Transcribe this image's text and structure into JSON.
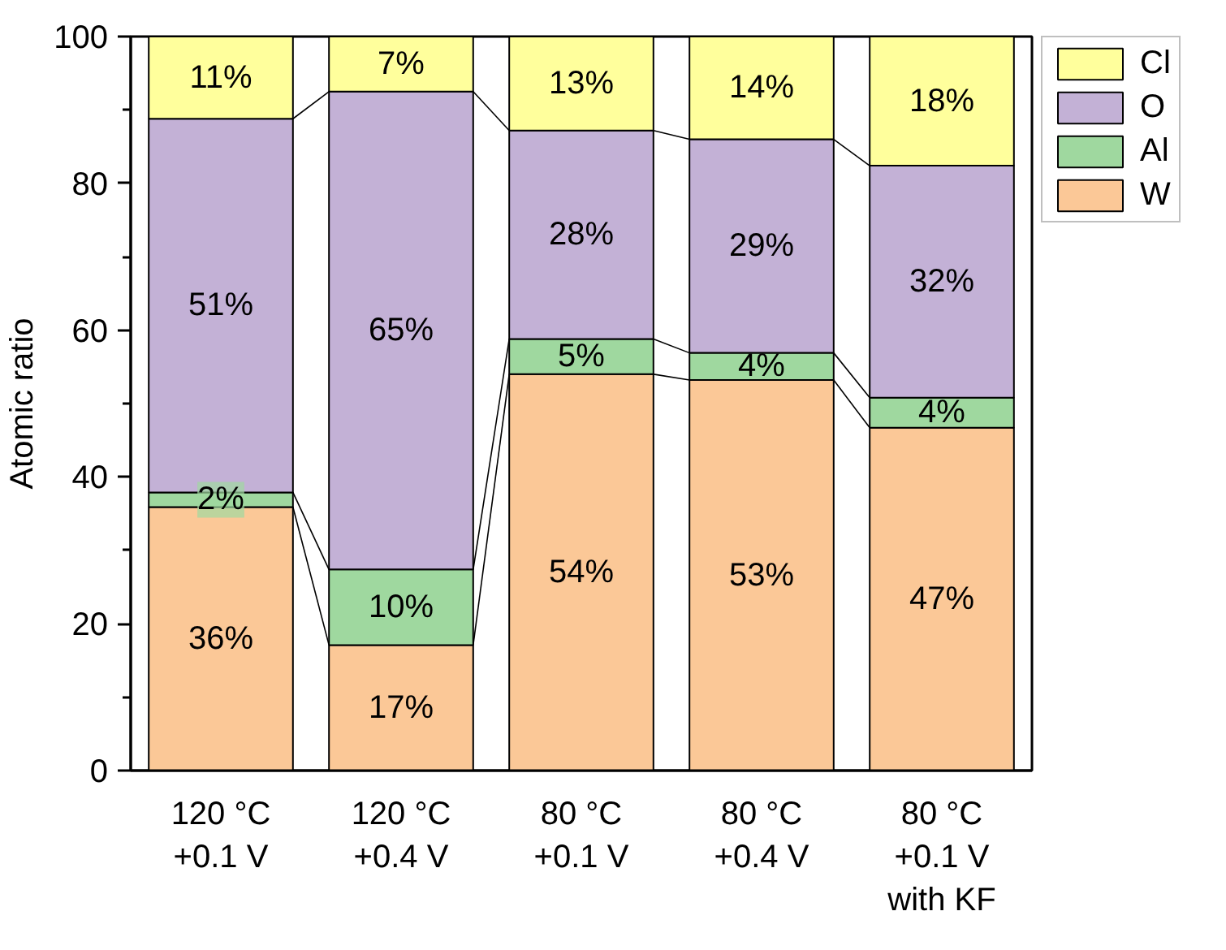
{
  "chart_data": {
    "type": "bar",
    "stacked": true,
    "ylabel": "Atomic ratio",
    "categories": [
      "120 °C\n+0.1 V",
      "120 °C\n+0.4 V",
      "80 °C\n+0.1 V",
      "80 °C\n+0.4 V",
      "80 °C\n+0.1 V\nwith KF"
    ],
    "ylim": [
      0,
      100
    ],
    "yticks": [
      0,
      {
        "value": 10,
        "label": null
      },
      20,
      {
        "value": 30,
        "label": null
      },
      40,
      {
        "value": 50,
        "label": null
      },
      60,
      {
        "value": 70,
        "label": null
      },
      80,
      {
        "value": 90,
        "label": null
      },
      100
    ],
    "legend": "top right",
    "series": [
      {
        "name": "W",
        "color": "#fbc897",
        "values": [
          35.9,
          17.1,
          54.0,
          53.2,
          46.7
        ],
        "value_labels": [
          "36%",
          "17%",
          "54%",
          "53%",
          "47%"
        ]
      },
      {
        "name": "Al",
        "color": "#9fd89f",
        "values": [
          2.0,
          10.3,
          4.8,
          3.7,
          4.1
        ],
        "value_labels": [
          "2%",
          "10%",
          "5%",
          "4%",
          "4%"
        ]
      },
      {
        "name": "O",
        "color": "#c3b1d6",
        "values": [
          50.9,
          65.1,
          28.4,
          29.1,
          31.6
        ],
        "value_labels": [
          "51%",
          "65%",
          "28%",
          "29%",
          "32%"
        ]
      },
      {
        "name": "Cl",
        "color": "#ffff9c",
        "values": [
          11.2,
          7.5,
          12.8,
          14.0,
          17.6
        ],
        "value_labels": [
          "11%",
          "7%",
          "13%",
          "14%",
          "18%"
        ]
      }
    ]
  }
}
